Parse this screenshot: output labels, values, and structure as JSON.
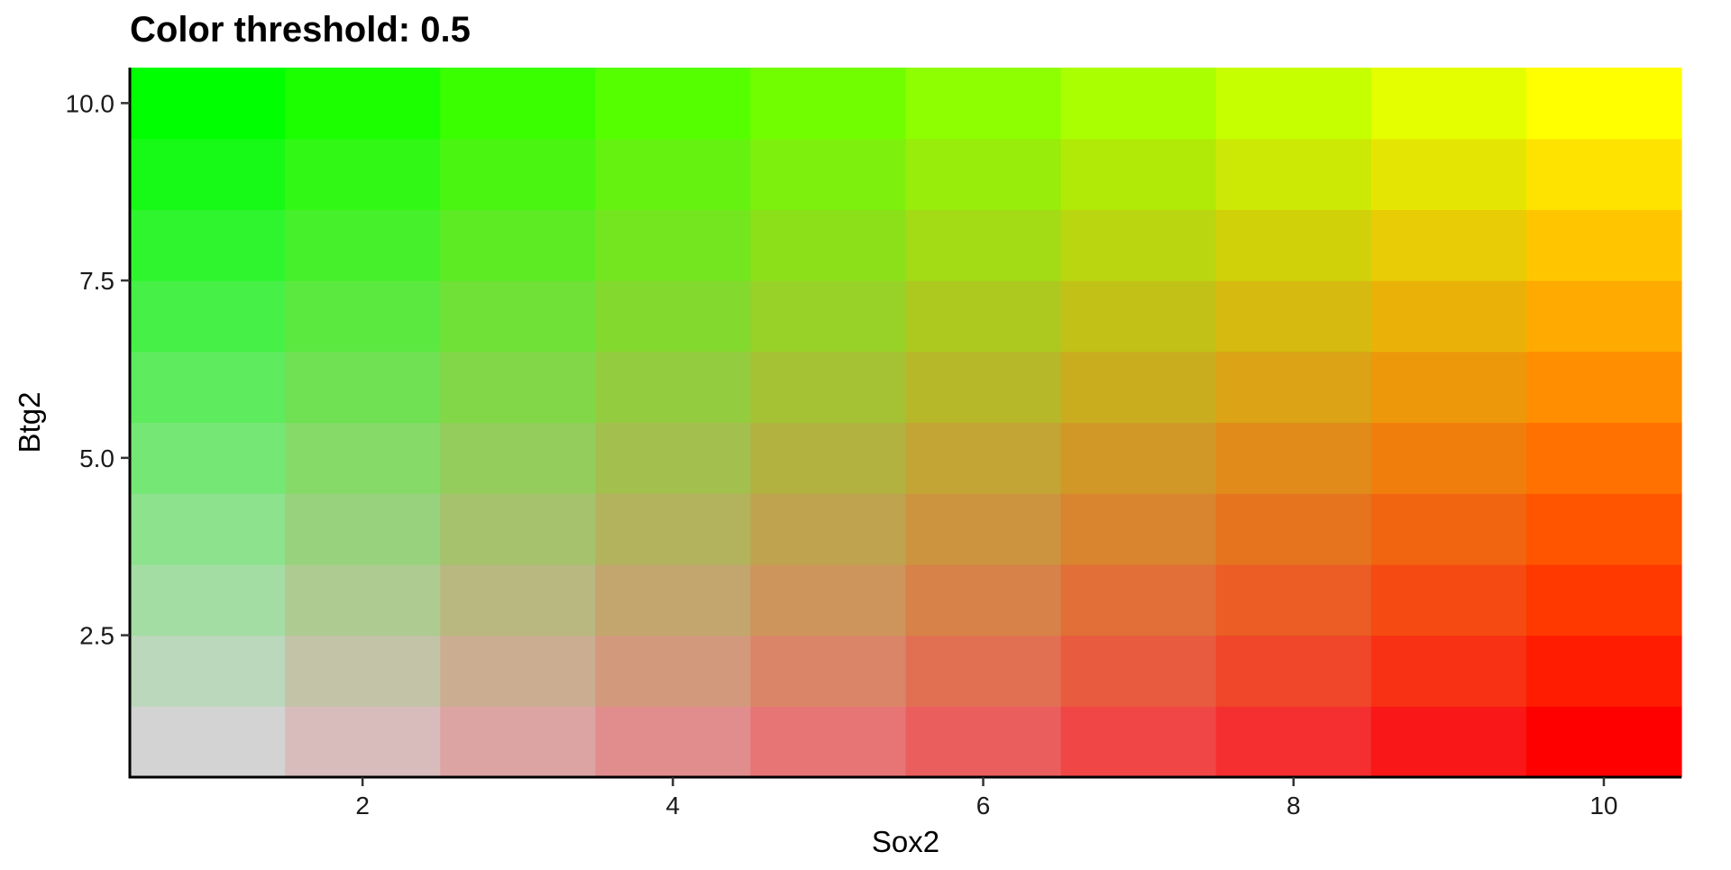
{
  "chart_data": {
    "type": "heatmap",
    "title": "Color threshold: 0.5",
    "xlabel": "Sox2",
    "ylabel": "Btg2",
    "x_values": [
      1,
      2,
      3,
      4,
      5,
      6,
      7,
      8,
      9,
      10
    ],
    "y_values": [
      1,
      2,
      3,
      4,
      5,
      6,
      7,
      8,
      9,
      10
    ],
    "xlim": [
      0.5,
      10.5
    ],
    "ylim": [
      0.5,
      10.5
    ],
    "x_ticks": [
      2,
      4,
      6,
      8,
      10
    ],
    "x_tick_labels": [
      "2",
      "4",
      "6",
      "8",
      "10"
    ],
    "y_ticks": [
      2.5,
      5.0,
      7.5,
      10.0
    ],
    "y_tick_labels": [
      "2.5",
      "5.0",
      "7.5",
      "10.0"
    ],
    "threshold": 0.5,
    "color_scale": {
      "low": "#d3d3d3",
      "x_high": "#ff0000",
      "y_high": "#00ff00",
      "both_high": "#ffff00"
    },
    "grid": false,
    "legend": "none"
  }
}
